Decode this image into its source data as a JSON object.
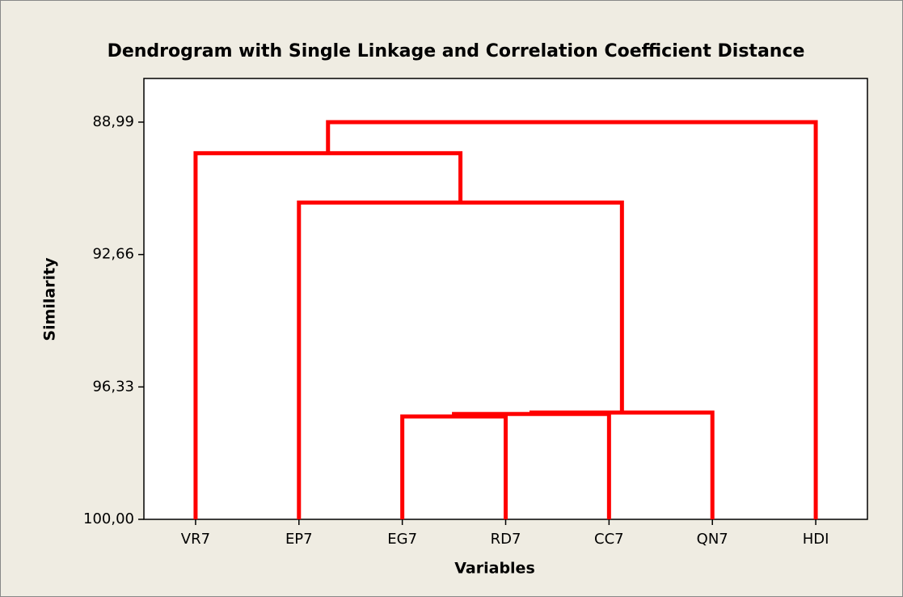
{
  "chart_data": {
    "type": "dendrogram",
    "title": "Dendrogram with Single Linkage and Correlation Coefficient Distance",
    "x_label": "Variables",
    "y_label": "Similarity",
    "categories": [
      "VR7",
      "EP7",
      "EG7",
      "RD7",
      "CC7",
      "QN7",
      "HDI"
    ],
    "merges": [
      {
        "join": [
          2,
          3
        ],
        "similarity": 97.15
      },
      {
        "join": [
          7,
          4
        ],
        "similarity": 97.08
      },
      {
        "join": [
          8,
          5
        ],
        "similarity": 97.04
      },
      {
        "join": [
          1,
          9
        ],
        "similarity": 91.22
      },
      {
        "join": [
          0,
          10
        ],
        "similarity": 89.85
      },
      {
        "join": [
          11,
          6
        ],
        "similarity": 88.99
      }
    ],
    "color": "#ff0000",
    "ylim": [
      100,
      87.78
    ],
    "yticks": [
      {
        "value": 88.99,
        "label": "88,99"
      },
      {
        "value": 92.66,
        "label": "92,66"
      },
      {
        "value": 96.33,
        "label": "96,33"
      },
      {
        "value": 100,
        "label": "100,00"
      }
    ]
  }
}
